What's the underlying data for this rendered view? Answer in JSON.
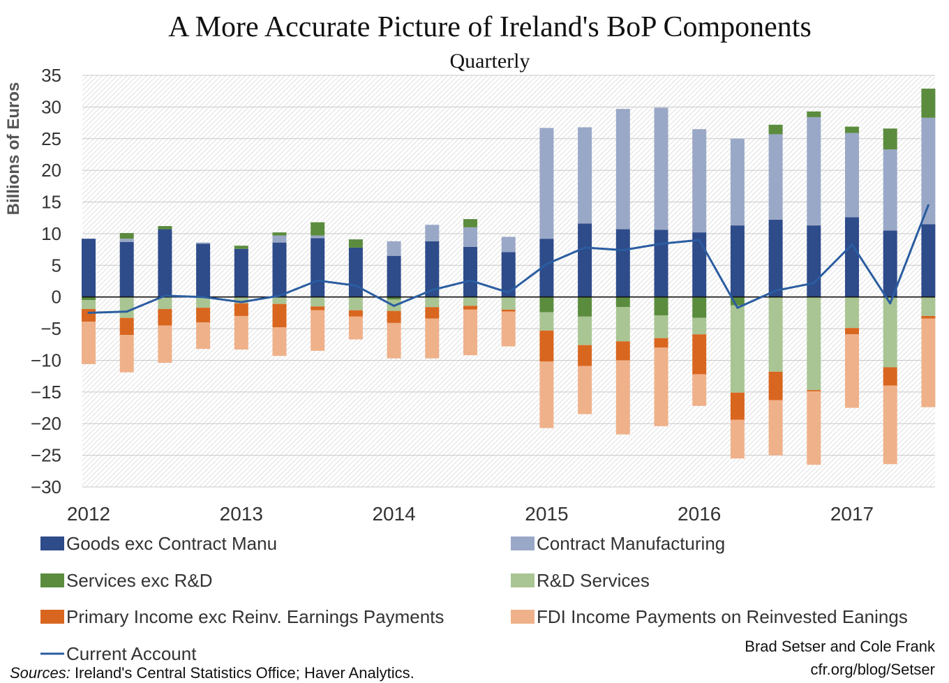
{
  "chart_data": {
    "type": "bar",
    "stacked": true,
    "title": "A More Accurate Picture of Ireland's BoP Components",
    "subtitle": "Quarterly",
    "ylabel": "Billions of Euros",
    "ylim": [
      -30,
      35
    ],
    "yticks": [
      35,
      30,
      25,
      20,
      15,
      10,
      5,
      0,
      -5,
      -10,
      -15,
      -20,
      -25,
      -30
    ],
    "year_labels": [
      "2012",
      "2013",
      "2014",
      "2015",
      "2016",
      "2017"
    ],
    "categories": [
      "2012Q1",
      "2012Q2",
      "2012Q3",
      "2012Q4",
      "2013Q1",
      "2013Q2",
      "2013Q3",
      "2013Q4",
      "2014Q1",
      "2014Q2",
      "2014Q3",
      "2014Q4",
      "2015Q1",
      "2015Q2",
      "2015Q3",
      "2015Q4",
      "2016Q1",
      "2016Q2",
      "2016Q3",
      "2016Q4",
      "2017Q1",
      "2017Q2",
      "2017Q3"
    ],
    "grid": true,
    "legend_position": "bottom",
    "series": [
      {
        "name": "Goods exc Contract Manu",
        "color": "#2e4b8a",
        "kind": "bar",
        "values": [
          9.2,
          8.7,
          10.7,
          8.4,
          7.6,
          8.6,
          9.3,
          7.8,
          6.5,
          8.8,
          7.9,
          7.1,
          9.2,
          11.6,
          10.7,
          10.6,
          10.2,
          11.3,
          12.2,
          11.3,
          12.6,
          10.5,
          11.5
        ]
      },
      {
        "name": "Contract Manufacturing",
        "color": "#9aa8c7",
        "kind": "bar",
        "values": [
          0,
          0.5,
          0,
          0.2,
          0,
          1.1,
          0.4,
          0,
          2.3,
          2.6,
          3.1,
          2.4,
          17.5,
          15.2,
          19.0,
          19.3,
          16.3,
          13.7,
          13.5,
          17.1,
          13.3,
          12.8,
          16.8
        ]
      },
      {
        "name": "Services exc R&D",
        "color": "#5b8c3e",
        "kind": "bar",
        "pos_values": [
          0,
          0.9,
          0.5,
          0,
          0.5,
          0.5,
          2.1,
          1.3,
          0,
          0,
          1.3,
          0,
          0,
          0,
          0,
          0,
          0,
          0,
          1.5,
          0.9,
          1.0,
          3.3,
          4.6
        ],
        "neg_values": [
          -0.5,
          0,
          0,
          0,
          0,
          0,
          0,
          0,
          -0.4,
          0,
          0,
          0,
          -2.4,
          -3.1,
          -1.6,
          -2.9,
          -3.3,
          -1.3,
          0,
          0,
          0,
          0,
          0
        ]
      },
      {
        "name": "R&D Services",
        "color": "#a9c593",
        "kind": "bar",
        "values": [
          -1.4,
          -3.3,
          -1.9,
          -1.7,
          -1.0,
          -1.1,
          -1.5,
          -2.1,
          -1.8,
          -1.6,
          -1.4,
          -2.0,
          -2.9,
          -4.5,
          -5.4,
          -3.6,
          -2.6,
          -13.8,
          -11.8,
          -14.7,
          -4.9,
          -11.1,
          -3.0
        ]
      },
      {
        "name": "Primary Income exc Reinv. Earnings Payments",
        "color": "#d9661f",
        "kind": "bar",
        "values": [
          -2.0,
          -2.7,
          -2.6,
          -2.3,
          -2.0,
          -3.7,
          -0.6,
          -1.0,
          -1.9,
          -1.8,
          -0.6,
          -0.3,
          -4.9,
          -3.3,
          -3.0,
          -1.5,
          -6.3,
          -4.3,
          -4.5,
          -0.2,
          -1.0,
          -2.9,
          -0.4
        ]
      },
      {
        "name": "FDI Income Payments on Reinvested Eanings",
        "color": "#efb18a",
        "kind": "bar",
        "values": [
          -6.7,
          -5.9,
          -5.9,
          -4.2,
          -5.3,
          -4.5,
          -6.4,
          -3.6,
          -5.6,
          -6.3,
          -7.2,
          -5.5,
          -10.5,
          -7.6,
          -11.7,
          -12.4,
          -5.0,
          -6.1,
          -8.7,
          -11.6,
          -11.6,
          -12.4,
          -14.0
        ]
      },
      {
        "name": "Current Account",
        "color": "#2b5da0",
        "kind": "line",
        "values": [
          -2.5,
          -2.3,
          0.2,
          0.0,
          -0.8,
          0.2,
          2.6,
          1.8,
          -1.4,
          1.1,
          2.6,
          0.7,
          5.2,
          7.8,
          7.4,
          8.4,
          9.0,
          -1.7,
          1.0,
          2.2,
          8.3,
          -1.0,
          14.5
        ]
      }
    ]
  },
  "footer": {
    "sources_prefix": "Sources:",
    "sources_text": " Ireland's Central Statistics Office; Haver Analytics.",
    "credit_line1": "Brad Setser and Cole Frank",
    "credit_line2": "cfr.org/blog/Setser"
  }
}
